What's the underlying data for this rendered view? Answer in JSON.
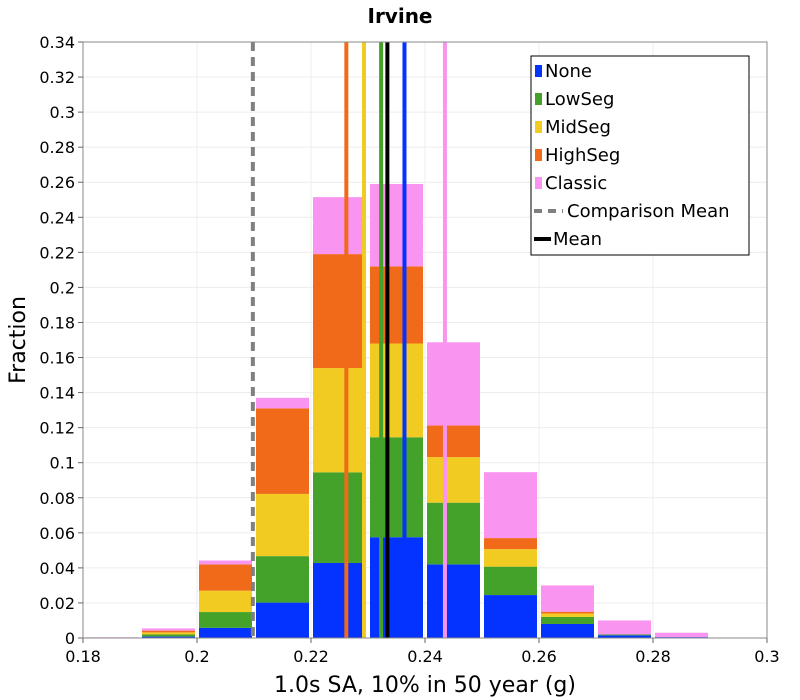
{
  "chart_data": {
    "type": "bar",
    "title": "Irvine",
    "xlabel": "1.0s SA, 10% in 50 year (g)",
    "ylabel": "Fraction",
    "xlim": [
      0.18,
      0.3
    ],
    "ylim": [
      0,
      0.34
    ],
    "x_ticks": [
      "0.18",
      "0.2",
      "0.22",
      "0.24",
      "0.26",
      "0.28",
      "0.3"
    ],
    "y_ticks": [
      "0",
      "0.02",
      "0.04",
      "0.06",
      "0.08",
      "0.1",
      "0.12",
      "0.14",
      "0.16",
      "0.18",
      "0.2",
      "0.22",
      "0.24",
      "0.26",
      "0.28",
      "0.3",
      "0.32",
      "0.34"
    ],
    "grid": true,
    "legend_position": "top-right",
    "bin_width": 0.01,
    "bin_centers": [
      0.185,
      0.195,
      0.205,
      0.215,
      0.225,
      0.235,
      0.245,
      0.255,
      0.265,
      0.275,
      0.285
    ],
    "series": [
      {
        "name": "None",
        "color": "#0433ff",
        "values": [
          0.0,
          0.0008,
          0.0058,
          0.0202,
          0.0428,
          0.0575,
          0.042,
          0.0245,
          0.008,
          0.0015,
          0.0005
        ]
      },
      {
        "name": "LowSeg",
        "color": "#44a12a",
        "values": [
          0.0,
          0.0012,
          0.009,
          0.0265,
          0.0517,
          0.057,
          0.0352,
          0.0162,
          0.004,
          0.0005,
          0.0
        ]
      },
      {
        "name": "MidSeg",
        "color": "#f2cb22",
        "values": [
          0.0,
          0.0012,
          0.0122,
          0.0355,
          0.0595,
          0.0535,
          0.026,
          0.01,
          0.002,
          0.0,
          0.0
        ]
      },
      {
        "name": "HighSeg",
        "color": "#f06a1a",
        "values": [
          0.0,
          0.001,
          0.015,
          0.0488,
          0.065,
          0.044,
          0.018,
          0.0063,
          0.001,
          0.0,
          0.0
        ]
      },
      {
        "name": "Classic",
        "color": "#f994f0",
        "values": [
          0.0004,
          0.0013,
          0.0022,
          0.006,
          0.0325,
          0.047,
          0.0475,
          0.0376,
          0.015,
          0.008,
          0.0025
        ]
      }
    ],
    "series_means": [
      {
        "name": "None",
        "color": "#0433ff",
        "x": 0.2364
      },
      {
        "name": "LowSeg",
        "color": "#44a12a",
        "x": 0.2323
      },
      {
        "name": "MidSeg",
        "color": "#f2cb22",
        "x": 0.2293
      },
      {
        "name": "HighSeg",
        "color": "#f06a1a",
        "x": 0.2262
      },
      {
        "name": "Classic",
        "color": "#f994f0",
        "x": 0.2435
      }
    ],
    "comparison_mean": {
      "name": "Comparison Mean",
      "x": 0.2098,
      "color": "#808080"
    },
    "mean": {
      "name": "Mean",
      "x": 0.2334,
      "color": "#000000"
    }
  }
}
